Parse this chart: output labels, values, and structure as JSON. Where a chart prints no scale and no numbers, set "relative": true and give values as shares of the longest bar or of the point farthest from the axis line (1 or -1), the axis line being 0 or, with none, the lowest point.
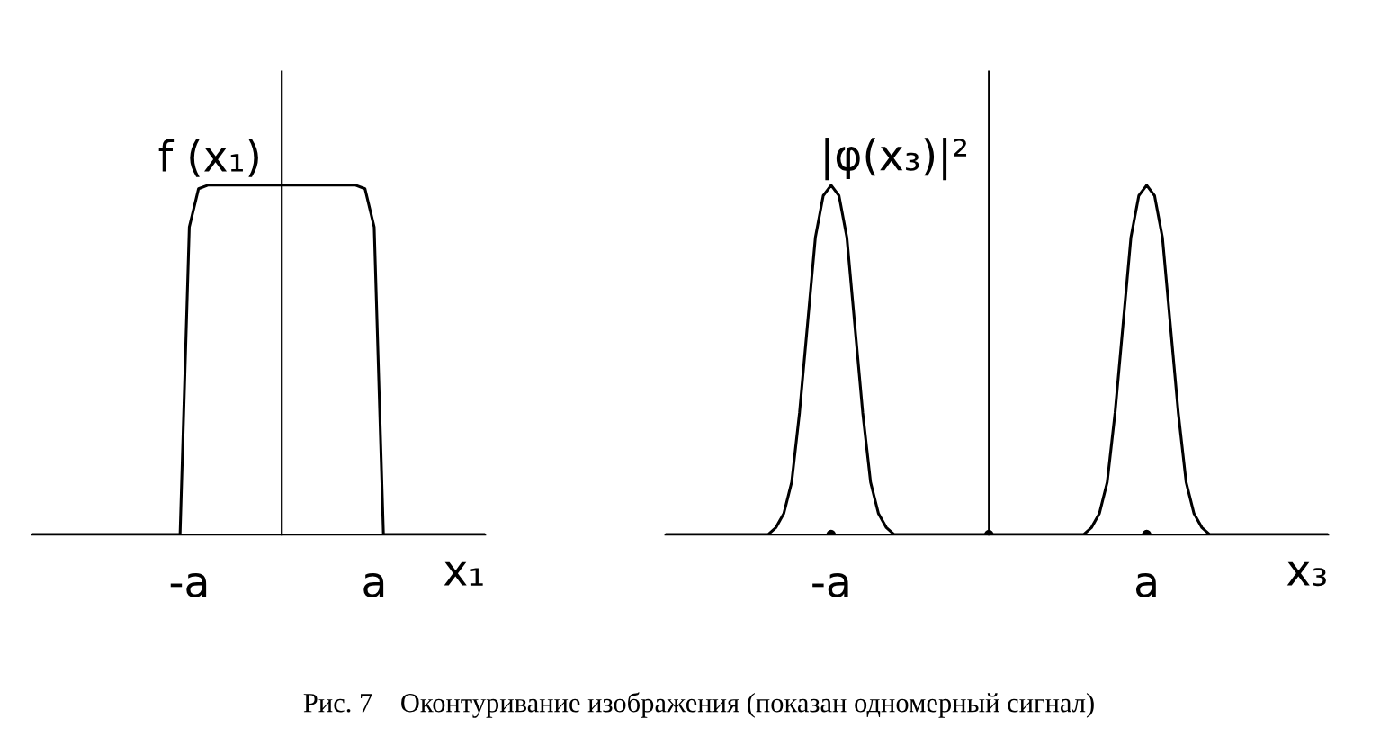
{
  "chart_data": [
    {
      "type": "line",
      "relative": true,
      "ylabel": "f (x₁)",
      "xlabel": "x₁",
      "tick_labels": "x",
      "categories": [
        null,
        null,
        null,
        null,
        null,
        null,
        null,
        null,
        null,
        null,
        null,
        null,
        null,
        null,
        null,
        null,
        null,
        "-a",
        null,
        null,
        null,
        null,
        null,
        null,
        null,
        null,
        null,
        null,
        null,
        null,
        null,
        null,
        null,
        null,
        null,
        null,
        null,
        "a",
        null,
        null,
        null,
        null,
        null,
        null,
        null,
        null,
        null,
        null,
        null,
        null
      ],
      "series": [
        {
          "color": "#000000",
          "values": [
            0,
            0,
            0,
            0,
            0,
            0,
            0,
            0,
            0,
            0,
            0,
            0,
            0,
            0,
            0,
            0,
            0,
            0.88,
            0.99,
            1,
            1,
            1,
            1,
            1,
            1,
            1,
            1,
            1,
            1,
            1,
            1,
            1,
            1,
            1,
            1,
            1,
            0.99,
            0.88,
            0,
            0,
            0,
            0,
            0,
            0,
            0,
            0,
            0,
            0,
            0,
            0
          ]
        }
      ]
    },
    {
      "type": "line",
      "relative": true,
      "ylabel": "|φ(x₃)|²",
      "xlabel": "x₃",
      "tick_labels": "x",
      "categories": [
        null,
        null,
        null,
        null,
        null,
        null,
        null,
        null,
        null,
        null,
        null,
        null,
        null,
        null,
        null,
        null,
        null,
        null,
        null,
        null,
        null,
        "-a",
        null,
        null,
        null,
        null,
        null,
        null,
        null,
        null,
        null,
        null,
        null,
        null,
        null,
        null,
        null,
        null,
        null,
        null,
        null,
        null,
        null,
        null,
        null,
        null,
        null,
        null,
        null,
        null,
        null,
        null,
        null,
        null,
        null,
        null,
        null,
        null,
        null,
        null,
        null,
        "a",
        null,
        null,
        null,
        null,
        null,
        null,
        null,
        null,
        null,
        null,
        null,
        null,
        null,
        null,
        null,
        null,
        null,
        null,
        null,
        null,
        null,
        null,
        null
      ],
      "series": [
        {
          "color": "#000000",
          "values": [
            0,
            0,
            0,
            0,
            0,
            0,
            0,
            0,
            0,
            0,
            0,
            0,
            0,
            0,
            0.02,
            0.06,
            0.15,
            0.35,
            0.6,
            0.85,
            0.97,
            1,
            0.97,
            0.85,
            0.6,
            0.35,
            0.15,
            0.06,
            0.02,
            0,
            0,
            0,
            0,
            0,
            0,
            0,
            0,
            0,
            0,
            0,
            0,
            0,
            0,
            0,
            0,
            0,
            0,
            0,
            0,
            0,
            0,
            0,
            0,
            0,
            0.02,
            0.06,
            0.15,
            0.35,
            0.6,
            0.85,
            0.97,
            1,
            0.97,
            0.85,
            0.6,
            0.35,
            0.15,
            0.06,
            0.02,
            0,
            0,
            0,
            0,
            0,
            0,
            0,
            0,
            0,
            0,
            0,
            0,
            0,
            0,
            0,
            0
          ]
        },
        {
          "type": "scatter",
          "marker": "circle",
          "color": "#000000",
          "values": [
            null,
            null,
            null,
            null,
            null,
            null,
            null,
            null,
            null,
            null,
            null,
            null,
            null,
            null,
            null,
            null,
            null,
            null,
            null,
            null,
            null,
            0,
            null,
            null,
            null,
            null,
            null,
            null,
            null,
            null,
            null,
            null,
            null,
            null,
            null,
            null,
            null,
            null,
            null,
            null,
            null,
            0,
            null,
            null,
            null,
            null,
            null,
            null,
            null,
            null,
            null,
            null,
            null,
            null,
            null,
            null,
            null,
            null,
            null,
            null,
            null,
            0,
            null,
            null,
            null,
            null,
            null,
            null,
            null,
            null,
            null,
            null,
            null,
            null,
            null,
            null,
            null,
            null,
            null,
            null,
            null,
            null,
            null,
            null,
            null
          ]
        }
      ],
      "annotations": [
        "Рис. 7    Оконтуривание изображения (показан одномерный сигнал)"
      ]
    }
  ]
}
